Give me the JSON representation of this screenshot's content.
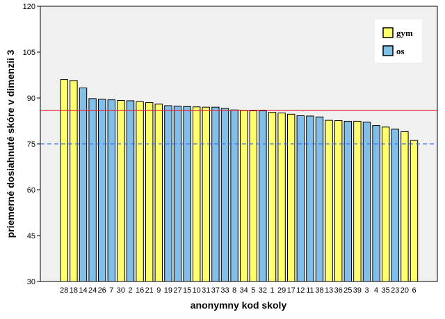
{
  "chart_data": {
    "type": "bar",
    "xlabel": "anonymny kod skoly",
    "ylabel": "priemerné dosiahnuté skóre v dimenzii 3",
    "ylim": [
      30,
      120
    ],
    "yticks": [
      30,
      45,
      60,
      75,
      90,
      105,
      120
    ],
    "categories": [
      "28",
      "18",
      "14",
      "24",
      "26",
      "7",
      "30",
      "2",
      "16",
      "21",
      "9",
      "19",
      "27",
      "15",
      "10",
      "31",
      "37",
      "33",
      "8",
      "34",
      "5",
      "32",
      "1",
      "29",
      "17",
      "12",
      "11",
      "38",
      "13",
      "36",
      "25",
      "39",
      "3",
      "4",
      "35",
      "23",
      "20",
      "6"
    ],
    "values": [
      96.0,
      95.7,
      93.3,
      89.8,
      89.6,
      89.4,
      89.2,
      89.1,
      88.8,
      88.5,
      88.0,
      87.5,
      87.3,
      87.2,
      87.1,
      87.0,
      87.0,
      86.6,
      86.1,
      85.9,
      85.8,
      85.8,
      85.3,
      85.1,
      84.7,
      84.2,
      84.1,
      83.8,
      82.7,
      82.6,
      82.4,
      82.4,
      82.1,
      81.0,
      80.5,
      79.8,
      79.0,
      76.1
    ],
    "groups": [
      "gym",
      "gym",
      "os",
      "os",
      "os",
      "os",
      "gym",
      "os",
      "gym",
      "gym",
      "gym",
      "os",
      "os",
      "os",
      "gym",
      "gym",
      "os",
      "os",
      "os",
      "gym",
      "gym",
      "os",
      "gym",
      "gym",
      "gym",
      "os",
      "os",
      "os",
      "gym",
      "gym",
      "os",
      "gym",
      "os",
      "os",
      "gym",
      "os",
      "gym",
      "gym"
    ],
    "series": [
      {
        "name": "gym",
        "color": "#ffff6e"
      },
      {
        "name": "os",
        "color": "#7fbfe8"
      }
    ],
    "reference_lines": [
      {
        "value": 86.0,
        "color": "#e8293c",
        "style": "solid"
      },
      {
        "value": 75.0,
        "color": "#3c6fe6",
        "style": "dashed"
      }
    ],
    "legend_position": "top-right",
    "grid": false,
    "plot_background": "#f0f0f0"
  }
}
